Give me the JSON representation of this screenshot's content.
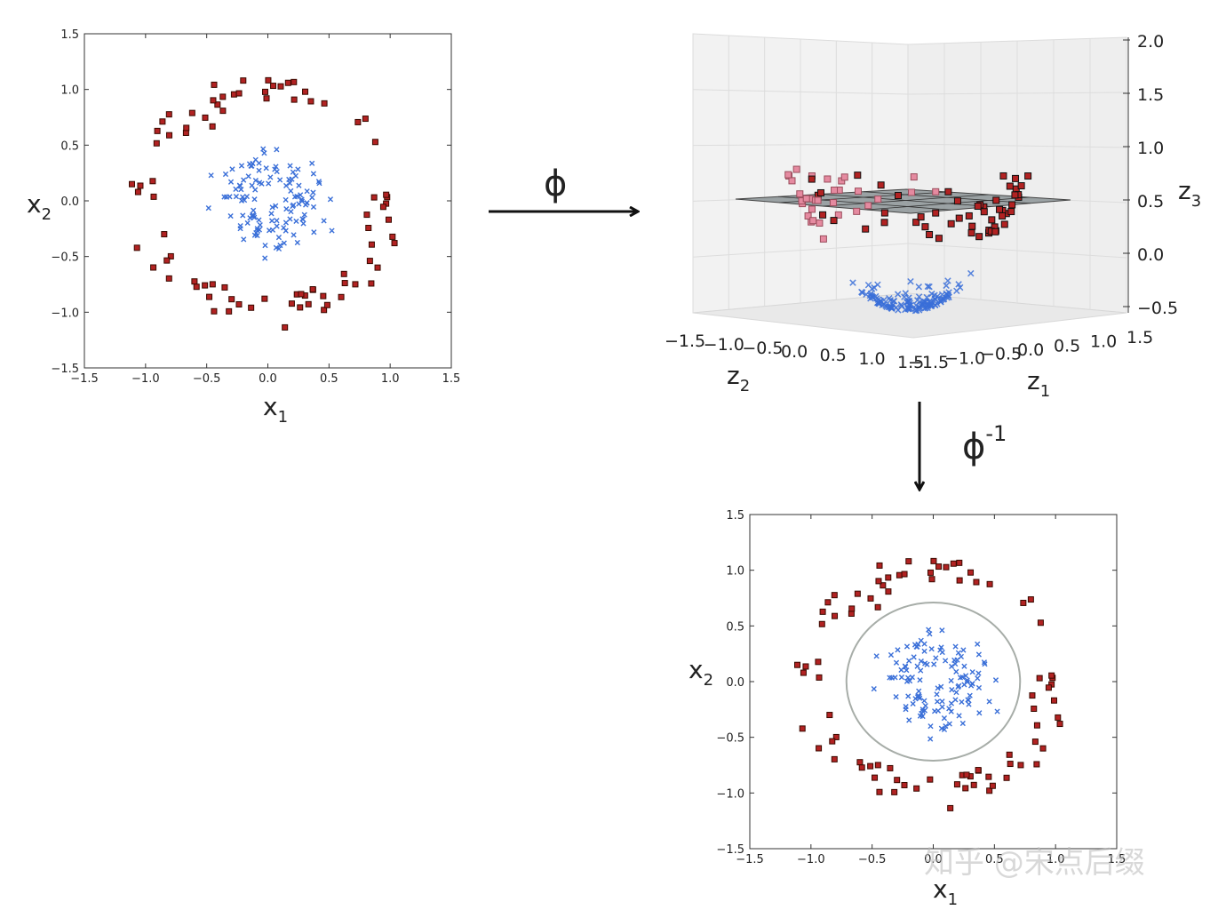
{
  "watermark": "知乎 @宋点后缀",
  "arrows": {
    "forward_label": "ϕ",
    "inverse_label": "ϕ",
    "inverse_sup": "-1"
  },
  "colors": {
    "outer_marker": "#b22222",
    "outer_edge": "#3a0a00",
    "inner_marker": "#3a6fd8",
    "plane": "#7d8588",
    "boundary": "#a7ada8"
  },
  "chart_data": [
    {
      "type": "scatter",
      "id": "input-space",
      "xlabel": "x",
      "xlabel_sub": "1",
      "ylabel": "x",
      "ylabel_sub": "2",
      "xlim": [
        -1.5,
        1.5
      ],
      "ylim": [
        -1.5,
        1.5
      ],
      "xticks": [
        "−1.5",
        "−1.0",
        "−0.5",
        "0.0",
        "0.5",
        "1.0",
        "1.5"
      ],
      "yticks": [
        "−1.5",
        "−1.0",
        "−0.5",
        "0.0",
        "0.5",
        "1.0",
        "1.5"
      ],
      "grid": false,
      "series": [
        {
          "marker": "square",
          "color": "#b22222",
          "description_radius": [
            0.85,
            1.15
          ],
          "count": 80
        },
        {
          "marker": "x",
          "color": "#3a6fd8",
          "description_radius": [
            0.1,
            0.6
          ],
          "count": 120
        }
      ]
    },
    {
      "type": "scatter3d",
      "id": "feature-space",
      "xlabel": "z",
      "xlabel_sub": "1",
      "ylabel": "z",
      "ylabel_sub": "2",
      "zlabel": "z",
      "zlabel_sub": "3",
      "xlim": [
        -1.5,
        1.5
      ],
      "ylim": [
        -1.5,
        1.5
      ],
      "zlim": [
        -0.5,
        2.0
      ],
      "z1_ticks": [
        "−1.5",
        "−1.0",
        "−0.5",
        "0.0",
        "0.5",
        "1.0",
        "1.5"
      ],
      "z2_ticks": [
        "−1.5",
        "−1.0",
        "−0.5",
        "0.0",
        "0.5",
        "1.0",
        "1.5"
      ],
      "z3_ticks": [
        "2.0",
        "1.5",
        "1.0",
        "0.5",
        "0.0",
        "−0.5"
      ],
      "separating_plane_z3": 0.5,
      "grid": true
    },
    {
      "type": "scatter",
      "id": "decision-boundary",
      "xlabel": "x",
      "xlabel_sub": "1",
      "ylabel": "x",
      "ylabel_sub": "2",
      "xlim": [
        -1.5,
        1.5
      ],
      "ylim": [
        -1.5,
        1.5
      ],
      "xticks": [
        "−1.5",
        "−1.0",
        "−0.5",
        "0.0",
        "0.5",
        "1.0",
        "1.5"
      ],
      "yticks": [
        "−1.5",
        "−1.0",
        "−0.5",
        "0.0",
        "0.5",
        "1.0",
        "1.5"
      ],
      "boundary_circle_radius": 0.71,
      "grid": false
    }
  ]
}
